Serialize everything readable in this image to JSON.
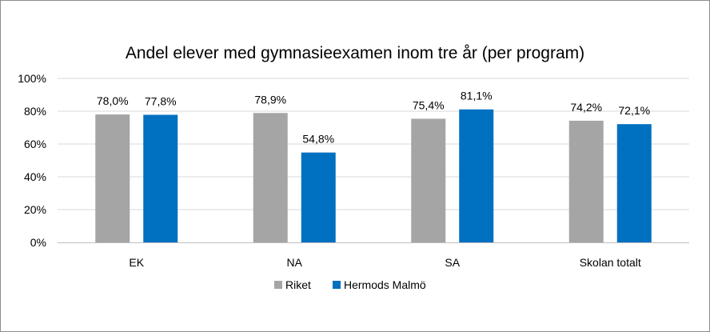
{
  "chart_data": {
    "type": "bar",
    "title": "Andel elever med gymnasieexamen inom tre år (per program)",
    "xlabel": "",
    "ylabel": "",
    "ylim": [
      0,
      100
    ],
    "yticks": [
      "0%",
      "20%",
      "40%",
      "60%",
      "80%",
      "100%"
    ],
    "categories": [
      "EK",
      "NA",
      "SA",
      "Skolan totalt"
    ],
    "series": [
      {
        "name": "Riket",
        "color": "#a5a5a5",
        "values": [
          78.0,
          78.9,
          75.4,
          74.2
        ],
        "labels": [
          "78,0%",
          "78,9%",
          "75,4%",
          "74,2%"
        ]
      },
      {
        "name": "Hermods Malmö",
        "color": "#0070c0",
        "values": [
          77.8,
          54.8,
          81.1,
          72.1
        ],
        "labels": [
          "77,8%",
          "54,8%",
          "81,1%",
          "72,1%"
        ]
      }
    ],
    "grid": true,
    "legend_position": "bottom"
  }
}
